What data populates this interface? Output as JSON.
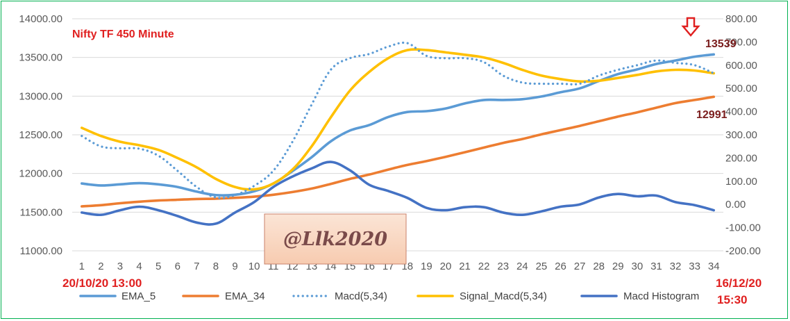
{
  "chart_data": {
    "type": "line",
    "title": "Nifty TF 450 Minute",
    "x": [
      1,
      2,
      3,
      4,
      5,
      6,
      7,
      8,
      9,
      10,
      11,
      12,
      13,
      14,
      15,
      16,
      17,
      18,
      19,
      20,
      21,
      22,
      23,
      24,
      25,
      26,
      27,
      28,
      29,
      30,
      31,
      32,
      33,
      34
    ],
    "y_left": {
      "min": 11000,
      "max": 14000,
      "step": 500,
      "tick_labels": [
        "11000.00",
        "11500.00",
        "12000.00",
        "12500.00",
        "13000.00",
        "13500.00",
        "14000.00"
      ]
    },
    "y_right": {
      "min": -200,
      "max": 800,
      "step": 100,
      "tick_labels": [
        "-200.00",
        "-100.00",
        "0.00",
        "100.00",
        "200.00",
        "300.00",
        "400.00",
        "500.00",
        "600.00",
        "700.00",
        "800.00"
      ]
    },
    "series": [
      {
        "name": "EMA_5",
        "axis": "left",
        "color": "#5b9bd5",
        "style": "solid",
        "values": [
          11870,
          11845,
          11860,
          11875,
          11860,
          11825,
          11765,
          11720,
          11725,
          11770,
          11870,
          12030,
          12210,
          12415,
          12555,
          12625,
          12730,
          12795,
          12805,
          12840,
          12905,
          12950,
          12950,
          12960,
          12995,
          13050,
          13100,
          13195,
          13285,
          13345,
          13415,
          13460,
          13510,
          13539
        ]
      },
      {
        "name": "EMA_34",
        "axis": "left",
        "color": "#ed7d31",
        "style": "solid",
        "values": [
          11575,
          11590,
          11615,
          11635,
          11650,
          11660,
          11670,
          11675,
          11685,
          11700,
          11725,
          11760,
          11805,
          11865,
          11930,
          11985,
          12050,
          12110,
          12160,
          12215,
          12275,
          12335,
          12395,
          12445,
          12505,
          12560,
          12615,
          12675,
          12735,
          12790,
          12850,
          12910,
          12950,
          12991
        ]
      },
      {
        "name": "Macd(5,34)",
        "axis": "right",
        "color": "#5b9bd5",
        "style": "dotted",
        "values": [
          295,
          250,
          242,
          240,
          210,
          145,
          75,
          30,
          40,
          80,
          145,
          270,
          430,
          580,
          630,
          648,
          680,
          695,
          640,
          630,
          630,
          613,
          555,
          525,
          520,
          520,
          520,
          555,
          580,
          600,
          620,
          610,
          600,
          565
        ]
      },
      {
        "name": "Signal_Macd(5,34)",
        "axis": "right",
        "color": "#ffc000",
        "style": "solid",
        "values": [
          330,
          295,
          270,
          255,
          235,
          200,
          160,
          110,
          75,
          65,
          90,
          150,
          250,
          375,
          490,
          570,
          630,
          665,
          665,
          655,
          645,
          633,
          610,
          580,
          555,
          540,
          530,
          533,
          545,
          558,
          573,
          580,
          577,
          565
        ]
      },
      {
        "name": "Macd Histogram",
        "axis": "right",
        "color": "#4472c4",
        "style": "solid",
        "values": [
          -35,
          -45,
          -25,
          -10,
          -25,
          -50,
          -78,
          -83,
          -35,
          10,
          75,
          120,
          155,
          183,
          147,
          85,
          58,
          28,
          -15,
          -25,
          -12,
          -12,
          -35,
          -45,
          -30,
          -10,
          0,
          30,
          45,
          35,
          38,
          10,
          -3,
          -25
        ]
      }
    ],
    "annotations": {
      "start_label": "20/10/20 13:00",
      "end_label_line1": "16/12/20",
      "end_label_line2": "15:30",
      "ema5_last_label": "13539",
      "ema34_last_label": "12991",
      "watermark": "@Llk2020",
      "arrow_icon": "down-arrow-icon"
    },
    "legend_position": "bottom",
    "grid": true
  }
}
